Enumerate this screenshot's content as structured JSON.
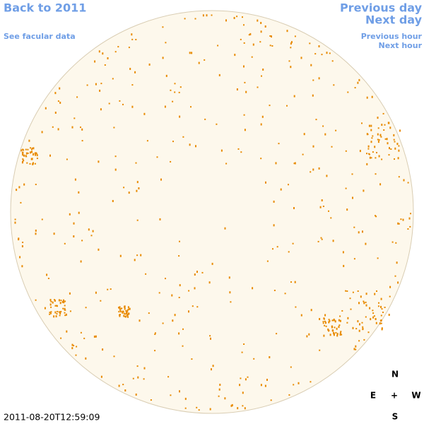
{
  "nav": {
    "back": "Back to 2011",
    "facular": "See facular data",
    "previous_day": "Previous day",
    "next_day": "Next day",
    "previous_hour": "Previous hour",
    "next_hour": "Next hour"
  },
  "timestamp": "2011-08-20T12:59:09",
  "compass": {
    "north": "N",
    "east": "E",
    "center": "+",
    "west": "W",
    "south": "S"
  }
}
